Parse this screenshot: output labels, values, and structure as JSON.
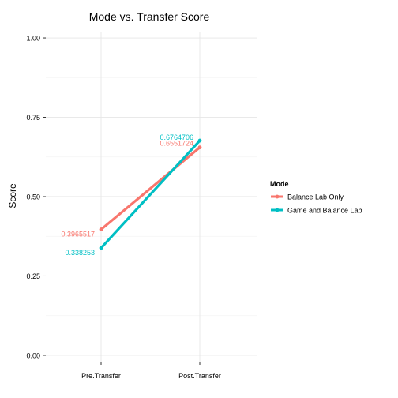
{
  "chart_data": {
    "type": "line",
    "title": "Mode vs. Transfer Score",
    "xlabel": "",
    "ylabel": "Score",
    "categories": [
      "Pre.Transfer",
      "Post.Transfer"
    ],
    "ylim": [
      -0.02,
      1.02
    ],
    "yticks": [
      0.0,
      0.25,
      0.5,
      0.75,
      1.0
    ],
    "ytick_labels": [
      "0.00",
      "0.25",
      "0.50",
      "0.75",
      "1.00"
    ],
    "grid": true,
    "legend_title": "Mode",
    "legend_position": "right",
    "series": [
      {
        "name": "Balance Lab Only",
        "color": "#F8766D",
        "values": [
          0.3965517,
          0.6551724
        ],
        "labels": [
          "0.3965517",
          "0.6551724"
        ]
      },
      {
        "name": "Game and Balance Lab",
        "color": "#00BFC4",
        "values": [
          0.338253,
          0.6764706
        ],
        "labels": [
          "0.338253",
          "0.6764706"
        ]
      }
    ]
  }
}
